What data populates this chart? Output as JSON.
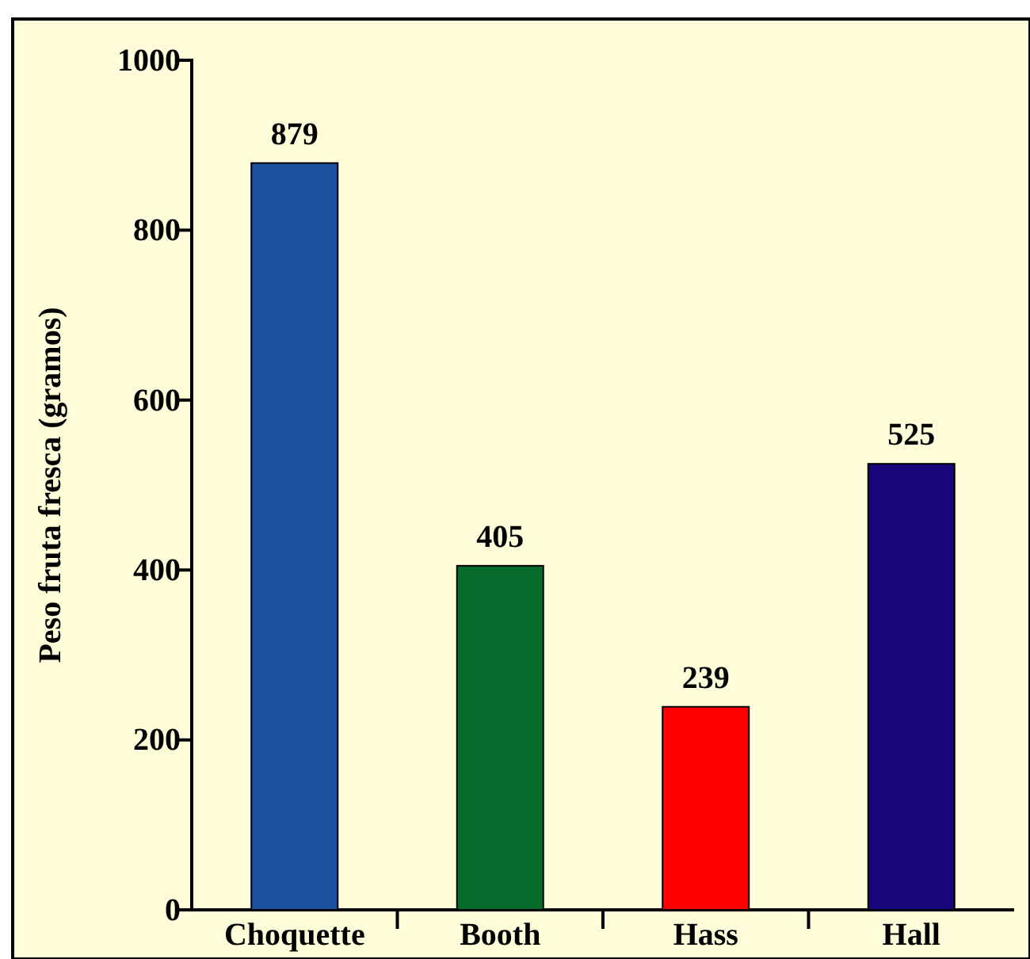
{
  "chart_data": {
    "type": "bar",
    "ylabel": "Peso fruta fresca (gramos)",
    "categories": [
      "Choquette",
      "Booth",
      "Hass",
      "Hall"
    ],
    "values": [
      879,
      405,
      239,
      525
    ],
    "colors": [
      "#1b519f",
      "#046b2a",
      "#ff0000",
      "#17067a"
    ],
    "ylim": [
      0,
      1000
    ],
    "yticks": [
      0,
      200,
      400,
      600,
      800,
      1000
    ],
    "data_labels": true
  }
}
